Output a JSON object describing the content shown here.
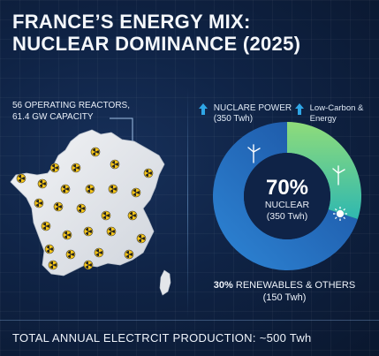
{
  "header": {
    "title_line1": "FRANCE’S ENERGY MIX:",
    "title_line2": "NUCLEAR DOMINANCE (2025)"
  },
  "map": {
    "reactor_count_label": "56 OPERATING REACTORS,",
    "capacity_label": "61.4 GW CAPACITY",
    "marker_icon": "radiation-icon"
  },
  "chart_data": {
    "type": "pie",
    "style": "donut",
    "categories": [
      "Nuclear",
      "Renewables & Others"
    ],
    "values": [
      70,
      30
    ],
    "unit": "%",
    "center_value": "70%",
    "center_label": "NUCLEAR",
    "center_sub": "(350 Twh)",
    "renewables_percent": "30%",
    "renewables_label": "RENEWABLES & OTHERS",
    "renewables_sub": "(150 Twh)",
    "legend": [
      {
        "line1": "NUCLARE POWER",
        "line2": "(350 Twh)"
      },
      {
        "line1": "Low-Carbon &",
        "line2": "Energy"
      }
    ],
    "colors": {
      "nuclear": "#1f5fb4",
      "nuclear_light": "#2e86d6",
      "renewables": "#3fc48f",
      "renewables_light": "#8fdc7a"
    }
  },
  "footer": {
    "total_label": "TOTAL ANNUAL ELECTRCIT PRODUCTION: ~500 Twh"
  },
  "icons": {
    "wind": "wind-turbine-icon",
    "sun": "sun-icon",
    "arrow": "arrow-up-icon"
  }
}
